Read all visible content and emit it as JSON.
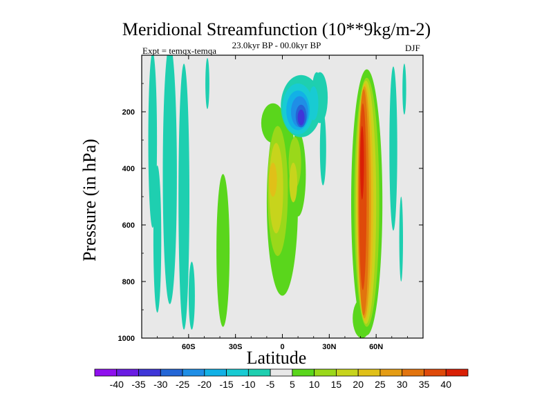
{
  "chart_data": {
    "type": "contour",
    "title": "Meridional Streamfunction (10**9kg/m-2)",
    "subtitle": "23.0kyr BP - 00.0kyr BP",
    "left_annotation": "Expt = temqx-temqa",
    "right_annotation": "DJF",
    "xlabel": "Latitude",
    "ylabel": "Pressure (in hPa)",
    "xlim": [
      -90,
      90
    ],
    "ylim": [
      0,
      1000
    ],
    "y_inverted": true,
    "x_ticks": [
      {
        "value": -60,
        "label": "60S"
      },
      {
        "value": -30,
        "label": "30S"
      },
      {
        "value": 0,
        "label": "0"
      },
      {
        "value": 30,
        "label": "30N"
      },
      {
        "value": 60,
        "label": "60N"
      }
    ],
    "y_ticks": [
      {
        "value": 200,
        "label": "200"
      },
      {
        "value": 400,
        "label": "400"
      },
      {
        "value": 600,
        "label": "600"
      },
      {
        "value": 800,
        "label": "800"
      },
      {
        "value": 1000,
        "label": "1000"
      }
    ],
    "colorbar": {
      "labels": [
        "-40",
        "-35",
        "-30",
        "-25",
        "-20",
        "-15",
        "-10",
        "-5",
        "5",
        "10",
        "15",
        "20",
        "25",
        "30",
        "35",
        "40"
      ],
      "colors": [
        "#8f10ee",
        "#6a1ce3",
        "#3f36d8",
        "#2466d6",
        "#1f8ee6",
        "#12b1e6",
        "#18cbd3",
        "#1ecfb0",
        "#e8e8e8",
        "#5ad61c",
        "#9ad81a",
        "#c7d41c",
        "#e0c018",
        "#e49c14",
        "#e2740e",
        "#df4a0a",
        "#d92006"
      ]
    },
    "features": [
      {
        "name": "NH polar cell band",
        "lat": [
          44,
          64
        ],
        "p": [
          40,
          1000
        ],
        "peak_value": 40,
        "peak_lat": 52,
        "peak_p": 500
      },
      {
        "name": "tropical positive lobe",
        "lat": [
          -15,
          18
        ],
        "p": [
          200,
          880
        ],
        "peak_value": 20,
        "peak_lat": -6,
        "peak_p": 450
      },
      {
        "name": "upper tropical negative lobe",
        "lat": [
          -8,
          32
        ],
        "p": [
          60,
          280
        ],
        "peak_value": -30,
        "peak_lat": 12,
        "peak_p": 220
      },
      {
        "name": "southern mid-latitude weak positive",
        "lat": [
          -42,
          -33
        ],
        "p": [
          400,
          960
        ],
        "peak_value": 5
      },
      {
        "name": "southern high-latitude weak negative",
        "lat": [
          -87,
          -57
        ],
        "p": [
          0,
          1000
        ],
        "peak_value": -5
      },
      {
        "name": "northern high-latitude weak negative",
        "lat": [
          66,
          79
        ],
        "p": [
          0,
          800
        ],
        "peak_value": -5
      }
    ]
  }
}
